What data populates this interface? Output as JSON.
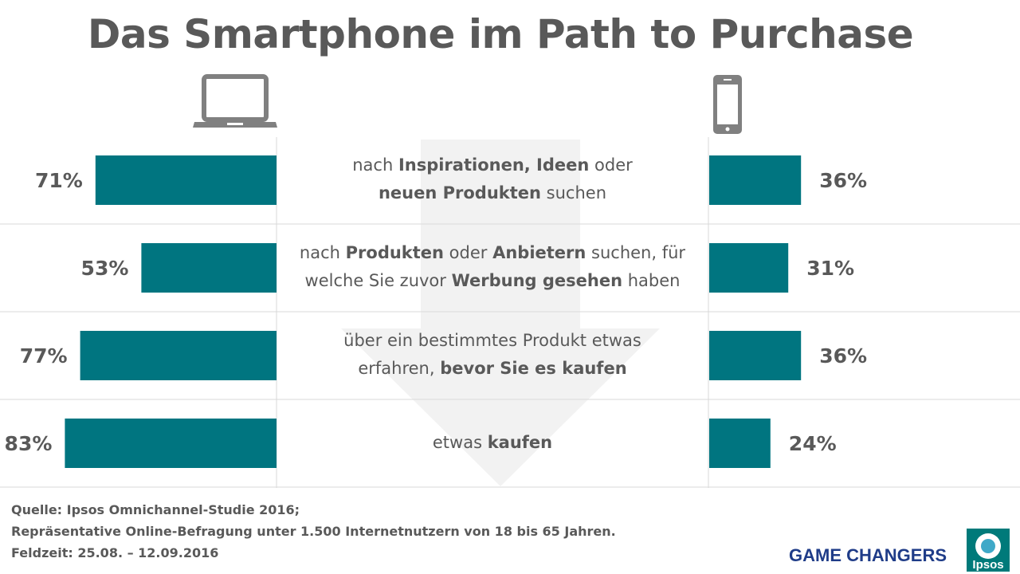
{
  "title": "Das Smartphone im Path to Purchase",
  "rows": [
    {
      "parts": [
        [
          "nach ",
          false
        ],
        [
          "Inspirationen, Ideen",
          true
        ],
        [
          " oder",
          false
        ]
      ],
      "parts2": [
        [
          "neuen Produkten",
          true
        ],
        [
          " suchen",
          false
        ]
      ]
    },
    {
      "parts": [
        [
          "nach ",
          false
        ],
        [
          "Produkten",
          true
        ],
        [
          " oder ",
          false
        ],
        [
          "Anbietern",
          true
        ],
        [
          " suchen, für",
          false
        ]
      ],
      "parts2": [
        [
          "welche Sie zuvor ",
          false
        ],
        [
          "Werbung gesehen",
          true
        ],
        [
          " haben",
          false
        ]
      ]
    },
    {
      "parts": [
        [
          "über ein bestimmtes Produkt etwas",
          false
        ]
      ],
      "parts2": [
        [
          "erfahren, ",
          false
        ],
        [
          "bevor Sie es kaufen",
          true
        ]
      ]
    },
    {
      "parts": [
        [
          "etwas ",
          false
        ],
        [
          "kaufen",
          true
        ]
      ],
      "parts2": []
    }
  ],
  "chart_data": {
    "type": "bar",
    "orientation": "horizontal-butterfly",
    "title": "Das Smartphone im Path to Purchase",
    "categories": [
      "nach Inspirationen, Ideen oder neuen Produkten suchen",
      "nach Produkten oder Anbietern suchen, für welche Sie zuvor Werbung gesehen haben",
      "über ein bestimmtes Produkt etwas erfahren, bevor Sie es kaufen",
      "etwas kaufen"
    ],
    "series": [
      {
        "name": "laptop",
        "values": [
          71,
          53,
          77,
          83
        ],
        "labels": [
          "71%",
          "53%",
          "77%",
          "83%"
        ]
      },
      {
        "name": "smartphone",
        "values": [
          36,
          31,
          36,
          24
        ],
        "labels": [
          "36%",
          "31%",
          "36%",
          "24%"
        ]
      }
    ],
    "unit": "%",
    "xlim": [
      0,
      100
    ]
  },
  "colors": {
    "bar": "#007580",
    "text": "#595959",
    "arrow": "#f2f2f2",
    "icon": "#808080",
    "brand": "#1f3c88",
    "logo_bg": "#007a7a"
  },
  "footer": {
    "line1": "Quelle: Ipsos Omnichannel-Studie  2016;",
    "line2": "Repräsentative Online-Befragung  unter 1.500 Internetnutzern  von 18 bis 65 Jahren.",
    "line3": "Feldzeit: 25.08. – 12.09.2016"
  },
  "brand": {
    "tagline": "GAME CHANGERS",
    "logo_text": "Ipsos"
  }
}
